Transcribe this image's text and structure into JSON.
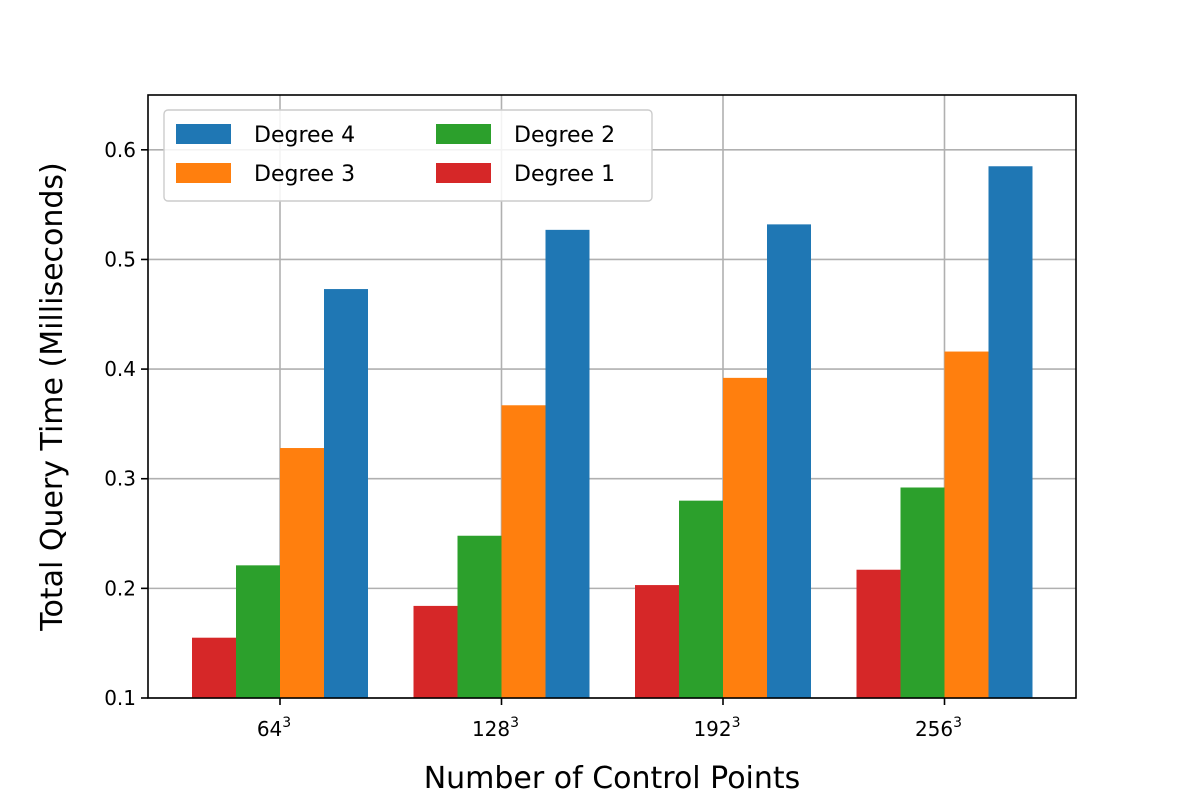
{
  "chart_data": {
    "type": "bar",
    "title": "",
    "xlabel": "Number of Control Points",
    "ylabel": "Total Query Time (Milliseconds)",
    "ylim": [
      0.1,
      0.65
    ],
    "yticks": [
      0.1,
      0.2,
      0.3,
      0.4,
      0.5,
      0.6
    ],
    "ytick_labels": [
      "0.1",
      "0.2",
      "0.3",
      "0.4",
      "0.5",
      "0.6"
    ],
    "grid": true,
    "legend_position": "top-left",
    "legend_columns": 2,
    "categories": [
      {
        "base": "64",
        "exponent": "3"
      },
      {
        "base": "128",
        "exponent": "3"
      },
      {
        "base": "192",
        "exponent": "3"
      },
      {
        "base": "256",
        "exponent": "3"
      }
    ],
    "series": [
      {
        "name": "Degree 1",
        "color": "#d62728",
        "values": [
          0.155,
          0.184,
          0.203,
          0.217
        ]
      },
      {
        "name": "Degree 2",
        "color": "#2ca02c",
        "values": [
          0.221,
          0.248,
          0.28,
          0.292
        ]
      },
      {
        "name": "Degree 3",
        "color": "#ff7f0e",
        "values": [
          0.328,
          0.367,
          0.392,
          0.416
        ]
      },
      {
        "name": "Degree 4",
        "color": "#1f77b4",
        "values": [
          0.473,
          0.527,
          0.532,
          0.585
        ]
      }
    ],
    "legend_order": [
      "Degree 4",
      "Degree 3",
      "Degree 2",
      "Degree 1"
    ]
  }
}
